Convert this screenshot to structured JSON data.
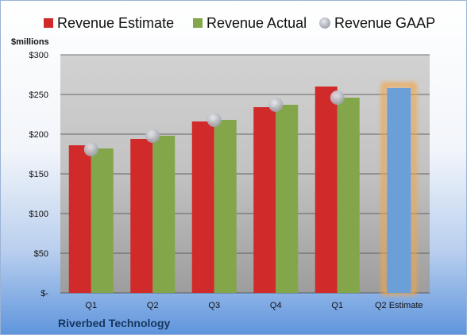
{
  "chart_data": {
    "type": "bar",
    "company": "Riverbed Technology",
    "ylabel": "$millions",
    "ylim": [
      0,
      300
    ],
    "yticks": [
      "$-",
      "$50",
      "$100",
      "$150",
      "$200",
      "$250",
      "$300"
    ],
    "categories": [
      "Q1",
      "Q2",
      "Q3",
      "Q4",
      "Q1",
      "Q2 Estimate"
    ],
    "legend_position": "top",
    "grid": true,
    "series": [
      {
        "name": "Revenue Estimate",
        "color": "#d02a2a",
        "values": [
          186,
          194,
          216,
          234,
          260,
          null
        ]
      },
      {
        "name": "Revenue Actual",
        "color": "#84a64a",
        "values": [
          182,
          198,
          218,
          237,
          246,
          null
        ]
      },
      {
        "name": "Revenue GAAP",
        "color": "#b4b8c0",
        "marker": "circle",
        "values": [
          181,
          198,
          218,
          237,
          246,
          null
        ]
      }
    ],
    "highlight": {
      "category_index": 5,
      "value": 258,
      "color": "#6b9fd8",
      "glow": "#f0a648"
    }
  }
}
